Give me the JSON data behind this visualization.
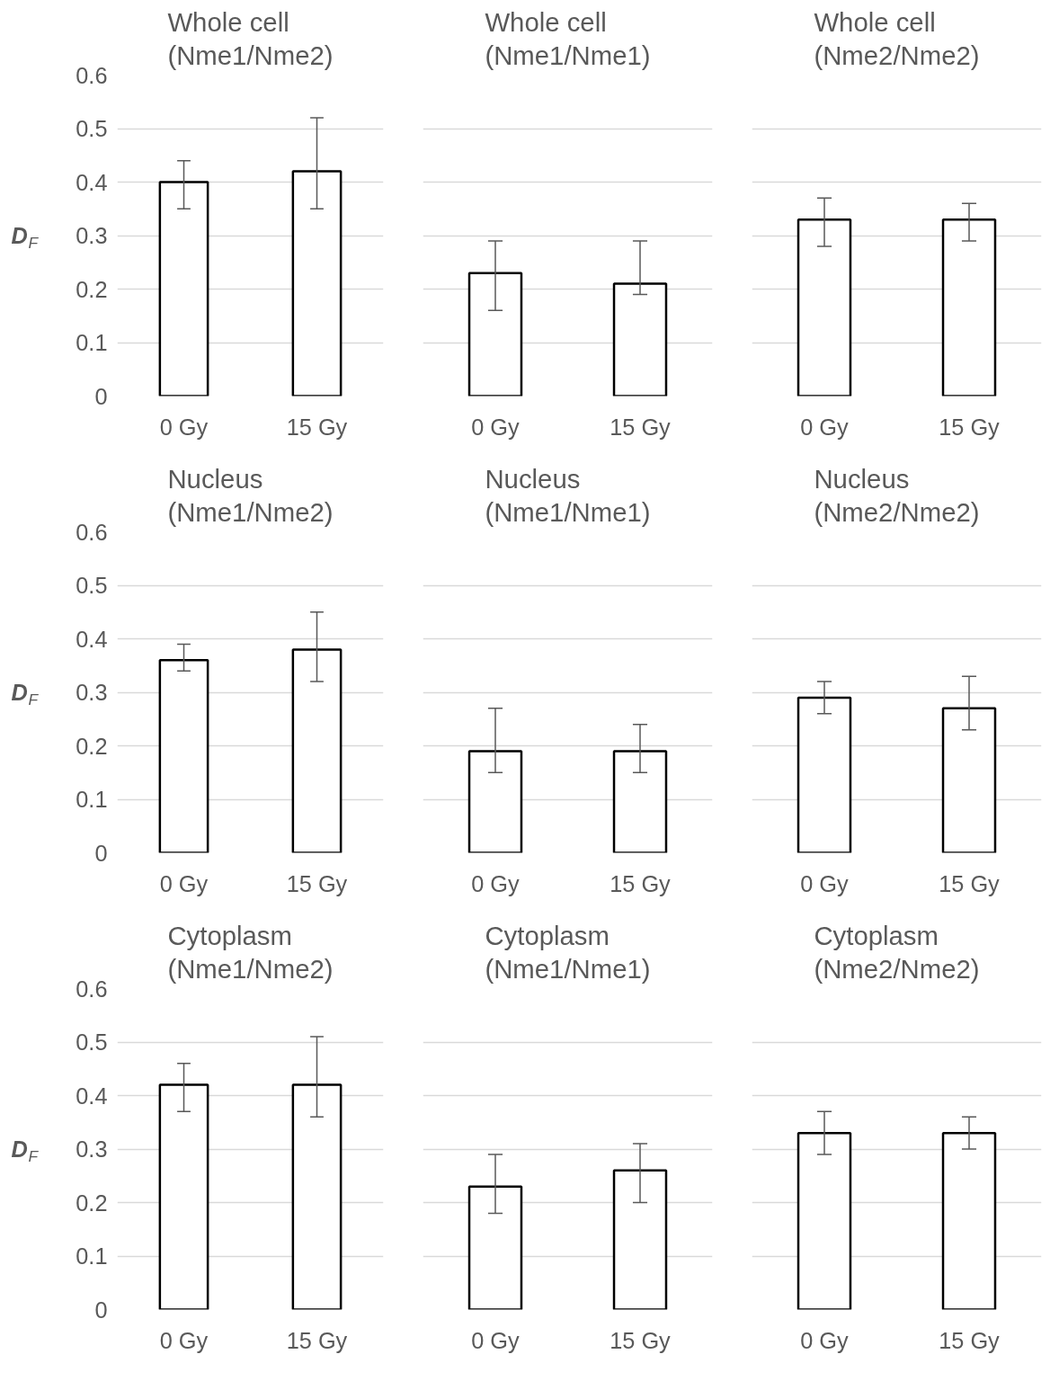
{
  "chart_data": [
    {
      "type": "bar",
      "title": "Whole cell\n(Nme1/Nme2)",
      "ylabel": "D$_{F}$",
      "categories": [
        "0 Gy",
        "15 Gy"
      ],
      "values": [
        0.4,
        0.42
      ],
      "errors": [
        [
          0.35,
          0.44
        ],
        [
          0.35,
          0.52
        ]
      ],
      "color": "#ffffff",
      "ylim": [
        0,
        0.6
      ],
      "yticks": [
        0,
        0.1,
        0.2,
        0.3,
        0.4,
        0.5,
        0.6
      ],
      "grid": "y"
    },
    {
      "type": "bar",
      "title": "Whole cell\n(Nme1/Nme1)",
      "categories": [
        "0 Gy",
        "15 Gy"
      ],
      "values": [
        0.23,
        0.21
      ],
      "errors": [
        [
          0.16,
          0.29
        ],
        [
          0.19,
          0.29
        ]
      ],
      "color": "#ffffff",
      "ylim": [
        0,
        0.6
      ],
      "yticks": [
        0,
        0.1,
        0.2,
        0.3,
        0.4,
        0.5,
        0.6
      ],
      "grid": "y",
      "tick_labels": "x"
    },
    {
      "type": "bar",
      "title": "Whole cell\n(Nme2/Nme2)",
      "categories": [
        "0 Gy",
        "15 Gy"
      ],
      "values": [
        0.33,
        0.33
      ],
      "errors": [
        [
          0.28,
          0.37
        ],
        [
          0.29,
          0.36
        ]
      ],
      "color": "#ffffff",
      "ylim": [
        0,
        0.6
      ],
      "yticks": [
        0,
        0.1,
        0.2,
        0.3,
        0.4,
        0.5,
        0.6
      ],
      "grid": "y",
      "tick_labels": "x"
    },
    {
      "type": "bar",
      "title": "Nucleus\n(Nme1/Nme2)",
      "ylabel": "D$_{F}$",
      "categories": [
        "0 Gy",
        "15 Gy"
      ],
      "values": [
        0.36,
        0.38
      ],
      "errors": [
        [
          0.34,
          0.39
        ],
        [
          0.32,
          0.45
        ]
      ],
      "color": "#ffffff",
      "ylim": [
        0,
        0.6
      ],
      "yticks": [
        0,
        0.1,
        0.2,
        0.3,
        0.4,
        0.5,
        0.6
      ],
      "grid": "y"
    },
    {
      "type": "bar",
      "title": "Nucleus\n(Nme1/Nme1)",
      "categories": [
        "0 Gy",
        "15 Gy"
      ],
      "values": [
        0.19,
        0.19
      ],
      "errors": [
        [
          0.15,
          0.27
        ],
        [
          0.15,
          0.24
        ]
      ],
      "color": "#ffffff",
      "ylim": [
        0,
        0.6
      ],
      "yticks": [
        0,
        0.1,
        0.2,
        0.3,
        0.4,
        0.5,
        0.6
      ],
      "grid": "y",
      "tick_labels": "x"
    },
    {
      "type": "bar",
      "title": "Nucleus\n(Nme2/Nme2)",
      "categories": [
        "0 Gy",
        "15 Gy"
      ],
      "values": [
        0.29,
        0.27
      ],
      "errors": [
        [
          0.26,
          0.32
        ],
        [
          0.23,
          0.33
        ]
      ],
      "color": "#ffffff",
      "ylim": [
        0,
        0.6
      ],
      "yticks": [
        0,
        0.1,
        0.2,
        0.3,
        0.4,
        0.5,
        0.6
      ],
      "grid": "y",
      "tick_labels": "x"
    },
    {
      "type": "bar",
      "title": "Cytoplasm\n(Nme1/Nme2)",
      "ylabel": "D$_{F}$",
      "categories": [
        "0 Gy",
        "15 Gy"
      ],
      "values": [
        0.42,
        0.42
      ],
      "errors": [
        [
          0.37,
          0.46
        ],
        [
          0.36,
          0.51
        ]
      ],
      "color": "#ffffff",
      "ylim": [
        0,
        0.6
      ],
      "yticks": [
        0,
        0.1,
        0.2,
        0.3,
        0.4,
        0.5,
        0.6
      ],
      "grid": "y"
    },
    {
      "type": "bar",
      "title": "Cytoplasm\n(Nme1/Nme1)",
      "categories": [
        "0 Gy",
        "15 Gy"
      ],
      "values": [
        0.23,
        0.26
      ],
      "errors": [
        [
          0.18,
          0.29
        ],
        [
          0.2,
          0.31
        ]
      ],
      "color": "#ffffff",
      "ylim": [
        0,
        0.6
      ],
      "yticks": [
        0,
        0.1,
        0.2,
        0.3,
        0.4,
        0.5,
        0.6
      ],
      "grid": "y",
      "tick_labels": "x"
    },
    {
      "type": "bar",
      "title": "Cytoplasm\n(Nme2/Nme2)",
      "categories": [
        "0 Gy",
        "15 Gy"
      ],
      "values": [
        0.33,
        0.33
      ],
      "errors": [
        [
          0.29,
          0.37
        ],
        [
          0.3,
          0.36
        ]
      ],
      "color": "#ffffff",
      "ylim": [
        0,
        0.6
      ],
      "yticks": [
        0,
        0.1,
        0.2,
        0.3,
        0.4,
        0.5,
        0.6
      ],
      "grid": "y",
      "tick_labels": "x"
    }
  ]
}
